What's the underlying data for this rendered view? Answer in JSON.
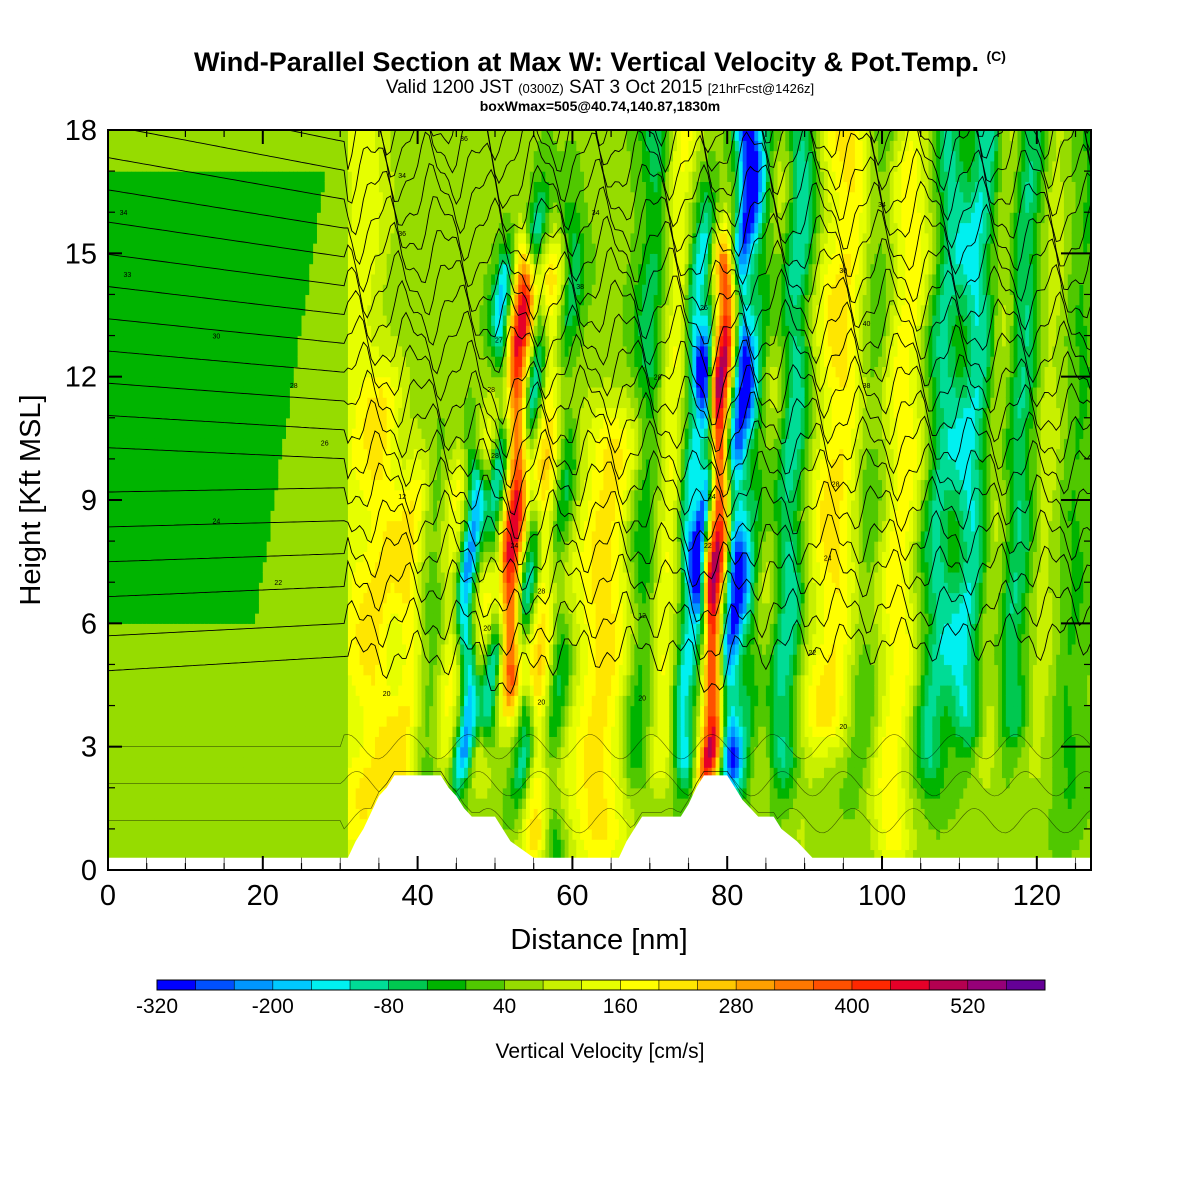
{
  "title": {
    "main": "Wind-Parallel Section at Max W: Vertical Velocity & Pot.Temp.",
    "mark": "(C)",
    "valid_pre": "Valid 1200 JST",
    "valid_z": "(0300Z)",
    "valid_date": "SAT 3 Oct 2015",
    "valid_fcst": "[21hrFcst@1426z]",
    "boxinfo": "boxWmax=505@40.74,140.87,1830m"
  },
  "chart_data": {
    "type": "heatmap",
    "xlabel": "Distance [nm]",
    "ylabel": "Height [Kft MSL]",
    "xlim": [
      0,
      127
    ],
    "ylim": [
      0,
      18
    ],
    "xticks": [
      0,
      20,
      40,
      60,
      80,
      100,
      120
    ],
    "yticks": [
      0,
      3,
      6,
      9,
      12,
      15,
      18
    ],
    "colorbar": {
      "label": "Vertical Velocity [cm/s]",
      "tick_labels": [
        "-320",
        "-200",
        "-80",
        "40",
        "160",
        "280",
        "400",
        "520"
      ],
      "levels": [
        -320,
        -280,
        -240,
        -200,
        -160,
        -120,
        -80,
        -40,
        0,
        40,
        80,
        120,
        160,
        200,
        240,
        280,
        320,
        360,
        400,
        440,
        480,
        520,
        560
      ],
      "colors": [
        "#0000ff",
        "#0050ff",
        "#0096ff",
        "#00c8ff",
        "#00f0f0",
        "#00dc96",
        "#00c850",
        "#00b400",
        "#50c800",
        "#96dc00",
        "#c8f000",
        "#e6ff00",
        "#ffff00",
        "#ffe600",
        "#ffc800",
        "#ffa000",
        "#ff7800",
        "#ff5000",
        "#ff2800",
        "#e60028",
        "#b40050",
        "#960078",
        "#640096"
      ]
    },
    "max_w": {
      "value": 505,
      "x_nm": 78,
      "height_kft": 8.5
    },
    "terrain": [
      {
        "x": 0,
        "h": 0.3
      },
      {
        "x": 31,
        "h": 0.3
      },
      {
        "x": 32,
        "h": 0.7
      },
      {
        "x": 33,
        "h": 1.0
      },
      {
        "x": 34,
        "h": 1.4
      },
      {
        "x": 35,
        "h": 1.8
      },
      {
        "x": 36,
        "h": 2.0
      },
      {
        "x": 37,
        "h": 2.3
      },
      {
        "x": 43,
        "h": 2.3
      },
      {
        "x": 44,
        "h": 2.0
      },
      {
        "x": 45,
        "h": 1.8
      },
      {
        "x": 46,
        "h": 1.5
      },
      {
        "x": 47,
        "h": 1.3
      },
      {
        "x": 50,
        "h": 1.3
      },
      {
        "x": 51,
        "h": 1.0
      },
      {
        "x": 52,
        "h": 0.7
      },
      {
        "x": 55,
        "h": 0.3
      },
      {
        "x": 66,
        "h": 0.3
      },
      {
        "x": 67,
        "h": 0.7
      },
      {
        "x": 68,
        "h": 1.0
      },
      {
        "x": 69,
        "h": 1.3
      },
      {
        "x": 74,
        "h": 1.3
      },
      {
        "x": 75,
        "h": 1.6
      },
      {
        "x": 76,
        "h": 2.0
      },
      {
        "x": 77,
        "h": 2.3
      },
      {
        "x": 80,
        "h": 2.3
      },
      {
        "x": 81,
        "h": 2.0
      },
      {
        "x": 82,
        "h": 1.7
      },
      {
        "x": 83,
        "h": 1.5
      },
      {
        "x": 84,
        "h": 1.3
      },
      {
        "x": 86,
        "h": 1.3
      },
      {
        "x": 87,
        "h": 1.0
      },
      {
        "x": 89,
        "h": 0.7
      },
      {
        "x": 91,
        "h": 0.3
      },
      {
        "x": 127,
        "h": 0.3
      }
    ],
    "w_features": [
      {
        "x": 31,
        "w": 3.5,
        "a": 100,
        "z0": 0,
        "z1": 18
      },
      {
        "x": 35,
        "w": 2.5,
        "a": 130,
        "z0": 2,
        "z1": 11
      },
      {
        "x": 39,
        "w": 2.0,
        "a": 150,
        "z0": 2,
        "z1": 9
      },
      {
        "x": 42,
        "w": 2.0,
        "a": -70,
        "z0": 2,
        "z1": 9
      },
      {
        "x": 44.5,
        "w": 2.0,
        "a": 140,
        "z0": 3,
        "z1": 9
      },
      {
        "x": 46.5,
        "w": 1.3,
        "a": -320,
        "z0": 3,
        "z1": 9
      },
      {
        "x": 48.5,
        "w": 2.0,
        "a": 120,
        "z0": 3,
        "z1": 10
      },
      {
        "x": 50,
        "w": 1.3,
        "a": -240,
        "z0": 4,
        "z1": 14
      },
      {
        "x": 52,
        "w": 1.8,
        "a": 430,
        "z0": 5,
        "z1": 14
      },
      {
        "x": 54,
        "w": 1.3,
        "a": -250,
        "z0": 3,
        "z1": 15
      },
      {
        "x": 56,
        "w": 2.0,
        "a": 200,
        "z0": 1,
        "z1": 14
      },
      {
        "x": 58,
        "w": 1.5,
        "a": -130,
        "z0": 1,
        "z1": 15
      },
      {
        "x": 64,
        "w": 4.0,
        "a": 170,
        "z0": 1,
        "z1": 10
      },
      {
        "x": 69,
        "w": 2.0,
        "a": -110,
        "z0": 3,
        "z1": 18
      },
      {
        "x": 72,
        "w": 2.0,
        "a": 130,
        "z0": 3,
        "z1": 18
      },
      {
        "x": 75,
        "w": 1.5,
        "a": -220,
        "z0": 3,
        "z1": 15
      },
      {
        "x": 76.5,
        "w": 1.0,
        "a": -300,
        "z0": 6,
        "z1": 12
      },
      {
        "x": 78.3,
        "w": 1.6,
        "a": 505,
        "z0": 3,
        "z1": 14
      },
      {
        "x": 80.5,
        "w": 1.6,
        "a": -330,
        "z0": 3,
        "z1": 18
      },
      {
        "x": 83,
        "w": 2.0,
        "a": -100,
        "z0": 3,
        "z1": 18
      },
      {
        "x": 85,
        "w": 2.0,
        "a": 90,
        "z0": 3,
        "z1": 18
      },
      {
        "x": 87.5,
        "w": 2.0,
        "a": -170,
        "z0": 3,
        "z1": 18
      },
      {
        "x": 91,
        "w": 2.0,
        "a": 40,
        "z0": 1,
        "z1": 18
      },
      {
        "x": 94,
        "w": 3.0,
        "a": 160,
        "z0": 4,
        "z1": 18
      },
      {
        "x": 97.5,
        "w": 2.0,
        "a": -60,
        "z0": 3,
        "z1": 18
      },
      {
        "x": 102,
        "w": 2.5,
        "a": 140,
        "z0": 1,
        "z1": 17
      },
      {
        "x": 107,
        "w": 2.0,
        "a": -140,
        "z0": 3,
        "z1": 18
      },
      {
        "x": 111,
        "w": 2.0,
        "a": -170,
        "z0": 4,
        "z1": 18
      },
      {
        "x": 114.5,
        "w": 1.8,
        "a": 70,
        "z0": 3,
        "z1": 18
      },
      {
        "x": 117,
        "w": 2.0,
        "a": -140,
        "z0": 4,
        "z1": 18
      },
      {
        "x": 120.5,
        "w": 2.0,
        "a": 60,
        "z0": 3,
        "z1": 18
      },
      {
        "x": 124.5,
        "w": 2.0,
        "a": -50,
        "z0": 2,
        "z1": 18
      }
    ],
    "calm_region_x_max": 31,
    "contour_heights_kft": [
      4.8,
      5.6,
      6.5,
      7.3,
      8.1,
      8.9,
      9.6,
      10.3,
      11.0,
      11.7,
      12.4,
      13.1,
      13.8,
      14.5,
      15.2,
      15.9,
      16.6,
      17.3,
      17.9
    ],
    "contour_labels": [
      {
        "x": 2,
        "y": 16.0,
        "text": "34"
      },
      {
        "x": 2.5,
        "y": 14.5,
        "text": "33"
      },
      {
        "x": 14,
        "y": 13.0,
        "text": "30"
      },
      {
        "x": 24,
        "y": 11.8,
        "text": "28"
      },
      {
        "x": 28,
        "y": 10.4,
        "text": "26"
      },
      {
        "x": 14,
        "y": 8.5,
        "text": "24"
      },
      {
        "x": 22,
        "y": 7.0,
        "text": "22"
      },
      {
        "x": 36,
        "y": 4.3,
        "text": "20"
      },
      {
        "x": 38,
        "y": 9.1,
        "text": "12"
      },
      {
        "x": 38,
        "y": 16.9,
        "text": "34"
      },
      {
        "x": 38,
        "y": 15.5,
        "text": "36"
      },
      {
        "x": 46,
        "y": 17.8,
        "text": "36"
      },
      {
        "x": 50.5,
        "y": 12.9,
        "text": "27"
      },
      {
        "x": 49.5,
        "y": 11.7,
        "text": "28"
      },
      {
        "x": 50,
        "y": 10.1,
        "text": "28"
      },
      {
        "x": 52.5,
        "y": 7.9,
        "text": "24"
      },
      {
        "x": 56,
        "y": 6.8,
        "text": "28"
      },
      {
        "x": 49,
        "y": 5.9,
        "text": "20"
      },
      {
        "x": 56,
        "y": 4.1,
        "text": "20"
      },
      {
        "x": 63,
        "y": 16.0,
        "text": "34"
      },
      {
        "x": 61,
        "y": 14.2,
        "text": "38"
      },
      {
        "x": 71,
        "y": 12.0,
        "text": "28"
      },
      {
        "x": 69,
        "y": 6.2,
        "text": "12"
      },
      {
        "x": 69,
        "y": 4.2,
        "text": "20"
      },
      {
        "x": 77,
        "y": 13.7,
        "text": "26"
      },
      {
        "x": 78,
        "y": 9.1,
        "text": "24"
      },
      {
        "x": 77.5,
        "y": 7.9,
        "text": "22"
      },
      {
        "x": 100,
        "y": 16.2,
        "text": "34"
      },
      {
        "x": 95,
        "y": 14.6,
        "text": "30"
      },
      {
        "x": 98,
        "y": 13.3,
        "text": "40"
      },
      {
        "x": 98,
        "y": 11.8,
        "text": "38"
      },
      {
        "x": 94,
        "y": 9.4,
        "text": "28"
      },
      {
        "x": 93,
        "y": 7.6,
        "text": "24"
      },
      {
        "x": 91,
        "y": 5.3,
        "text": "22"
      },
      {
        "x": 95,
        "y": 3.5,
        "text": "20"
      }
    ]
  }
}
